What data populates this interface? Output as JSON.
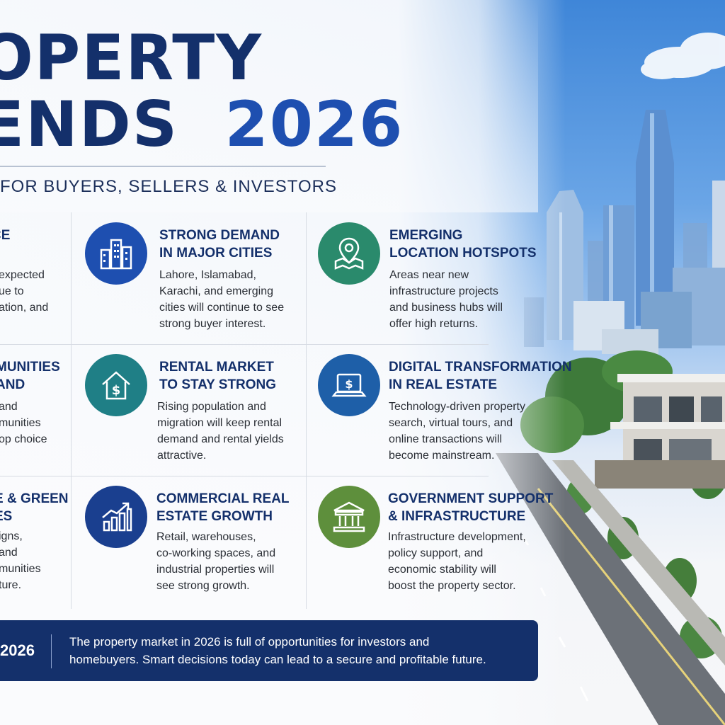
{
  "header": {
    "title_line1": "OPERTY",
    "title_line2_word": "ENDS",
    "title_year": "2026",
    "subtitle": "FOR BUYERS, SELLERS & INVESTORS"
  },
  "cards": {
    "left_col": [
      {
        "title": "CE",
        "body": "expected\nue to\nation, and"
      },
      {
        "title": "MUNITIES\nAND",
        "body": "and\nmunities\nop choice"
      },
      {
        "title": "E & GREEN\nES",
        "body": "igns,\nand\nmunities\nture."
      }
    ],
    "strong_demand": {
      "title": "STRONG DEMAND\nIN MAJOR CITIES",
      "body": "Lahore, Islamabad,\nKarachi, and emerging\ncities will continue to see\nstrong buyer interest.",
      "icon": "buildings-icon",
      "color": "#1e4fb0"
    },
    "emerging_hotspots": {
      "title": "EMERGING\nLOCATION HOTSPOTS",
      "body": "Areas near new\ninfrastructure projects\nand business hubs will\noffer high returns.",
      "icon": "map-pin-icon",
      "color": "#2a8a6c"
    },
    "rental_market": {
      "title": "RENTAL MARKET\nTO STAY STRONG",
      "body": "Rising population and\nmigration will keep rental\ndemand and rental yields\nattractive.",
      "icon": "house-dollar-icon",
      "color": "#1f7f86"
    },
    "digital_transformation": {
      "title": "DIGITAL TRANSFORMATION\nIN REAL ESTATE",
      "body": "Technology-driven property\nsearch, virtual tours, and\nonline transactions will\nbecome mainstream.",
      "icon": "laptop-dollar-icon",
      "color": "#1e5fa8"
    },
    "commercial_growth": {
      "title": "COMMERCIAL REAL\nESTATE GROWTH",
      "body": "Retail, warehouses,\nco-working spaces, and\nindustrial properties will\nsee strong growth.",
      "icon": "growth-chart-icon",
      "color": "#1a3f8f"
    },
    "government_support": {
      "title": "GOVERNMENT SUPPORT\n& INFRASTRUCTURE",
      "body": "Infrastructure development,\npolicy support, and\neconomic stability will\nboost the property sector.",
      "icon": "government-building-icon",
      "color": "#5e8f3c"
    }
  },
  "banner": {
    "year": "2026",
    "text": "The property market in 2026 is full of opportunities for investors and\nhomebuyers. Smart decisions today can lead to a secure and profitable future."
  }
}
